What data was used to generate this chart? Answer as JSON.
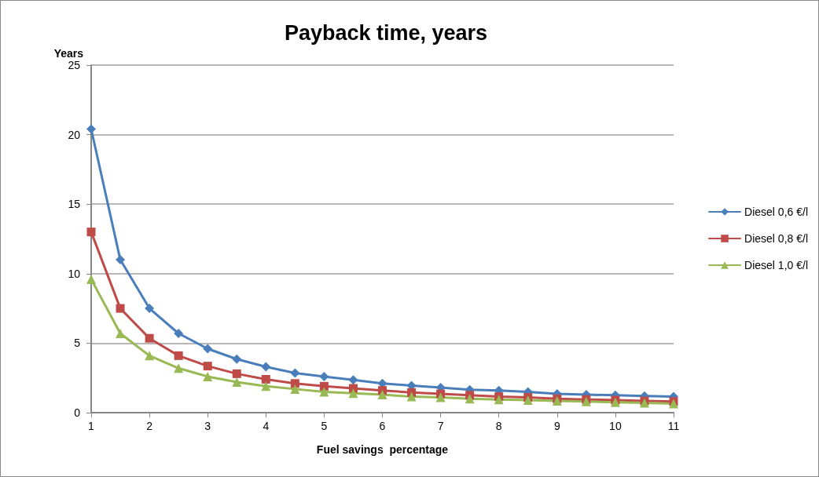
{
  "chart_data": {
    "type": "line",
    "title": "Payback time, years",
    "xlabel": "Fuel savings  percentage",
    "ylabel": "Years",
    "x": [
      1,
      1.5,
      2,
      2.5,
      3,
      3.5,
      4,
      4.5,
      5,
      5.5,
      6,
      6.5,
      7,
      7.5,
      8,
      8.5,
      9,
      9.5,
      10,
      10.5,
      11
    ],
    "series": [
      {
        "name": "Diesel 0,6 €/l",
        "color": "#4a7ebb",
        "marker": "diamond",
        "values": [
          20.4,
          11.0,
          7.5,
          5.7,
          4.6,
          3.85,
          3.3,
          2.85,
          2.6,
          2.35,
          2.1,
          1.95,
          1.8,
          1.65,
          1.6,
          1.5,
          1.35,
          1.3,
          1.25,
          1.2,
          1.15
        ]
      },
      {
        "name": "Diesel 0,8 €/l",
        "color": "#be4b48",
        "marker": "square",
        "values": [
          13.0,
          7.5,
          5.35,
          4.1,
          3.35,
          2.8,
          2.4,
          2.1,
          1.9,
          1.75,
          1.6,
          1.45,
          1.35,
          1.25,
          1.15,
          1.1,
          1.0,
          0.95,
          0.9,
          0.85,
          0.8
        ]
      },
      {
        "name": "Diesel 1,0 €/l",
        "color": "#98b954",
        "marker": "triangle",
        "values": [
          9.6,
          5.7,
          4.1,
          3.2,
          2.6,
          2.2,
          1.9,
          1.7,
          1.5,
          1.4,
          1.3,
          1.15,
          1.1,
          1.0,
          0.95,
          0.9,
          0.85,
          0.8,
          0.75,
          0.7,
          0.65
        ]
      }
    ],
    "xlim": [
      1,
      11
    ],
    "xticks": [
      1,
      2,
      3,
      4,
      5,
      6,
      7,
      8,
      9,
      10,
      11
    ],
    "ylim": [
      0,
      25
    ],
    "yticks": [
      0,
      5,
      10,
      15,
      20,
      25
    ],
    "grid": "y",
    "legend": "right",
    "line_style": "solid"
  }
}
